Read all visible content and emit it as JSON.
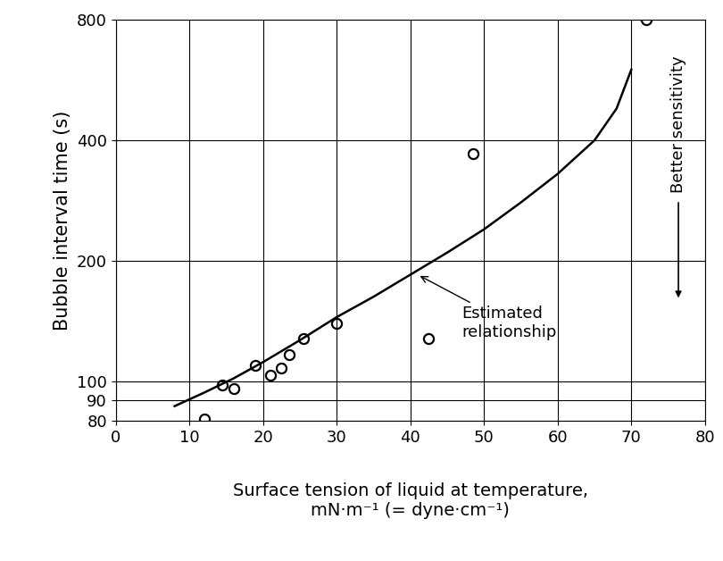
{
  "chart_data": {
    "type": "scatter",
    "x_label": "Surface tension of liquid at temperature,\nmN·m⁻¹ (= dyne·cm⁻¹)",
    "y_label": "Bubble interval time (s)",
    "log": "y",
    "grid": true,
    "xlim": [
      0,
      80
    ],
    "xticks": [
      0,
      10,
      20,
      30,
      40,
      50,
      60,
      70,
      80
    ],
    "ylim": [
      80,
      800
    ],
    "yticks": [
      80,
      90,
      100,
      200,
      400,
      800
    ],
    "series": [
      {
        "type": "scatter",
        "color": "#000000",
        "marker": "o",
        "x": [
          12,
          14.5,
          16,
          19,
          21,
          22.5,
          23.5,
          25.5,
          30,
          42.5,
          48.5,
          72
        ],
        "values": [
          81,
          98,
          96,
          110,
          104,
          108,
          117,
          128,
          140,
          128,
          370,
          800
        ]
      },
      {
        "type": "line",
        "color": "#000000",
        "line_style": "solid",
        "x": [
          8,
          12,
          16,
          20,
          25,
          30,
          35,
          40,
          45,
          50,
          55,
          60,
          65,
          68,
          70
        ],
        "values": [
          87,
          94,
          102,
          112,
          127,
          145,
          163,
          185,
          210,
          240,
          280,
          330,
          400,
          480,
          600
        ]
      }
    ],
    "annotations": [
      {
        "text": "Estimated\nrelationship",
        "x": 41,
        "y": 185
      },
      {
        "text": "Better sensitivity"
      }
    ]
  }
}
